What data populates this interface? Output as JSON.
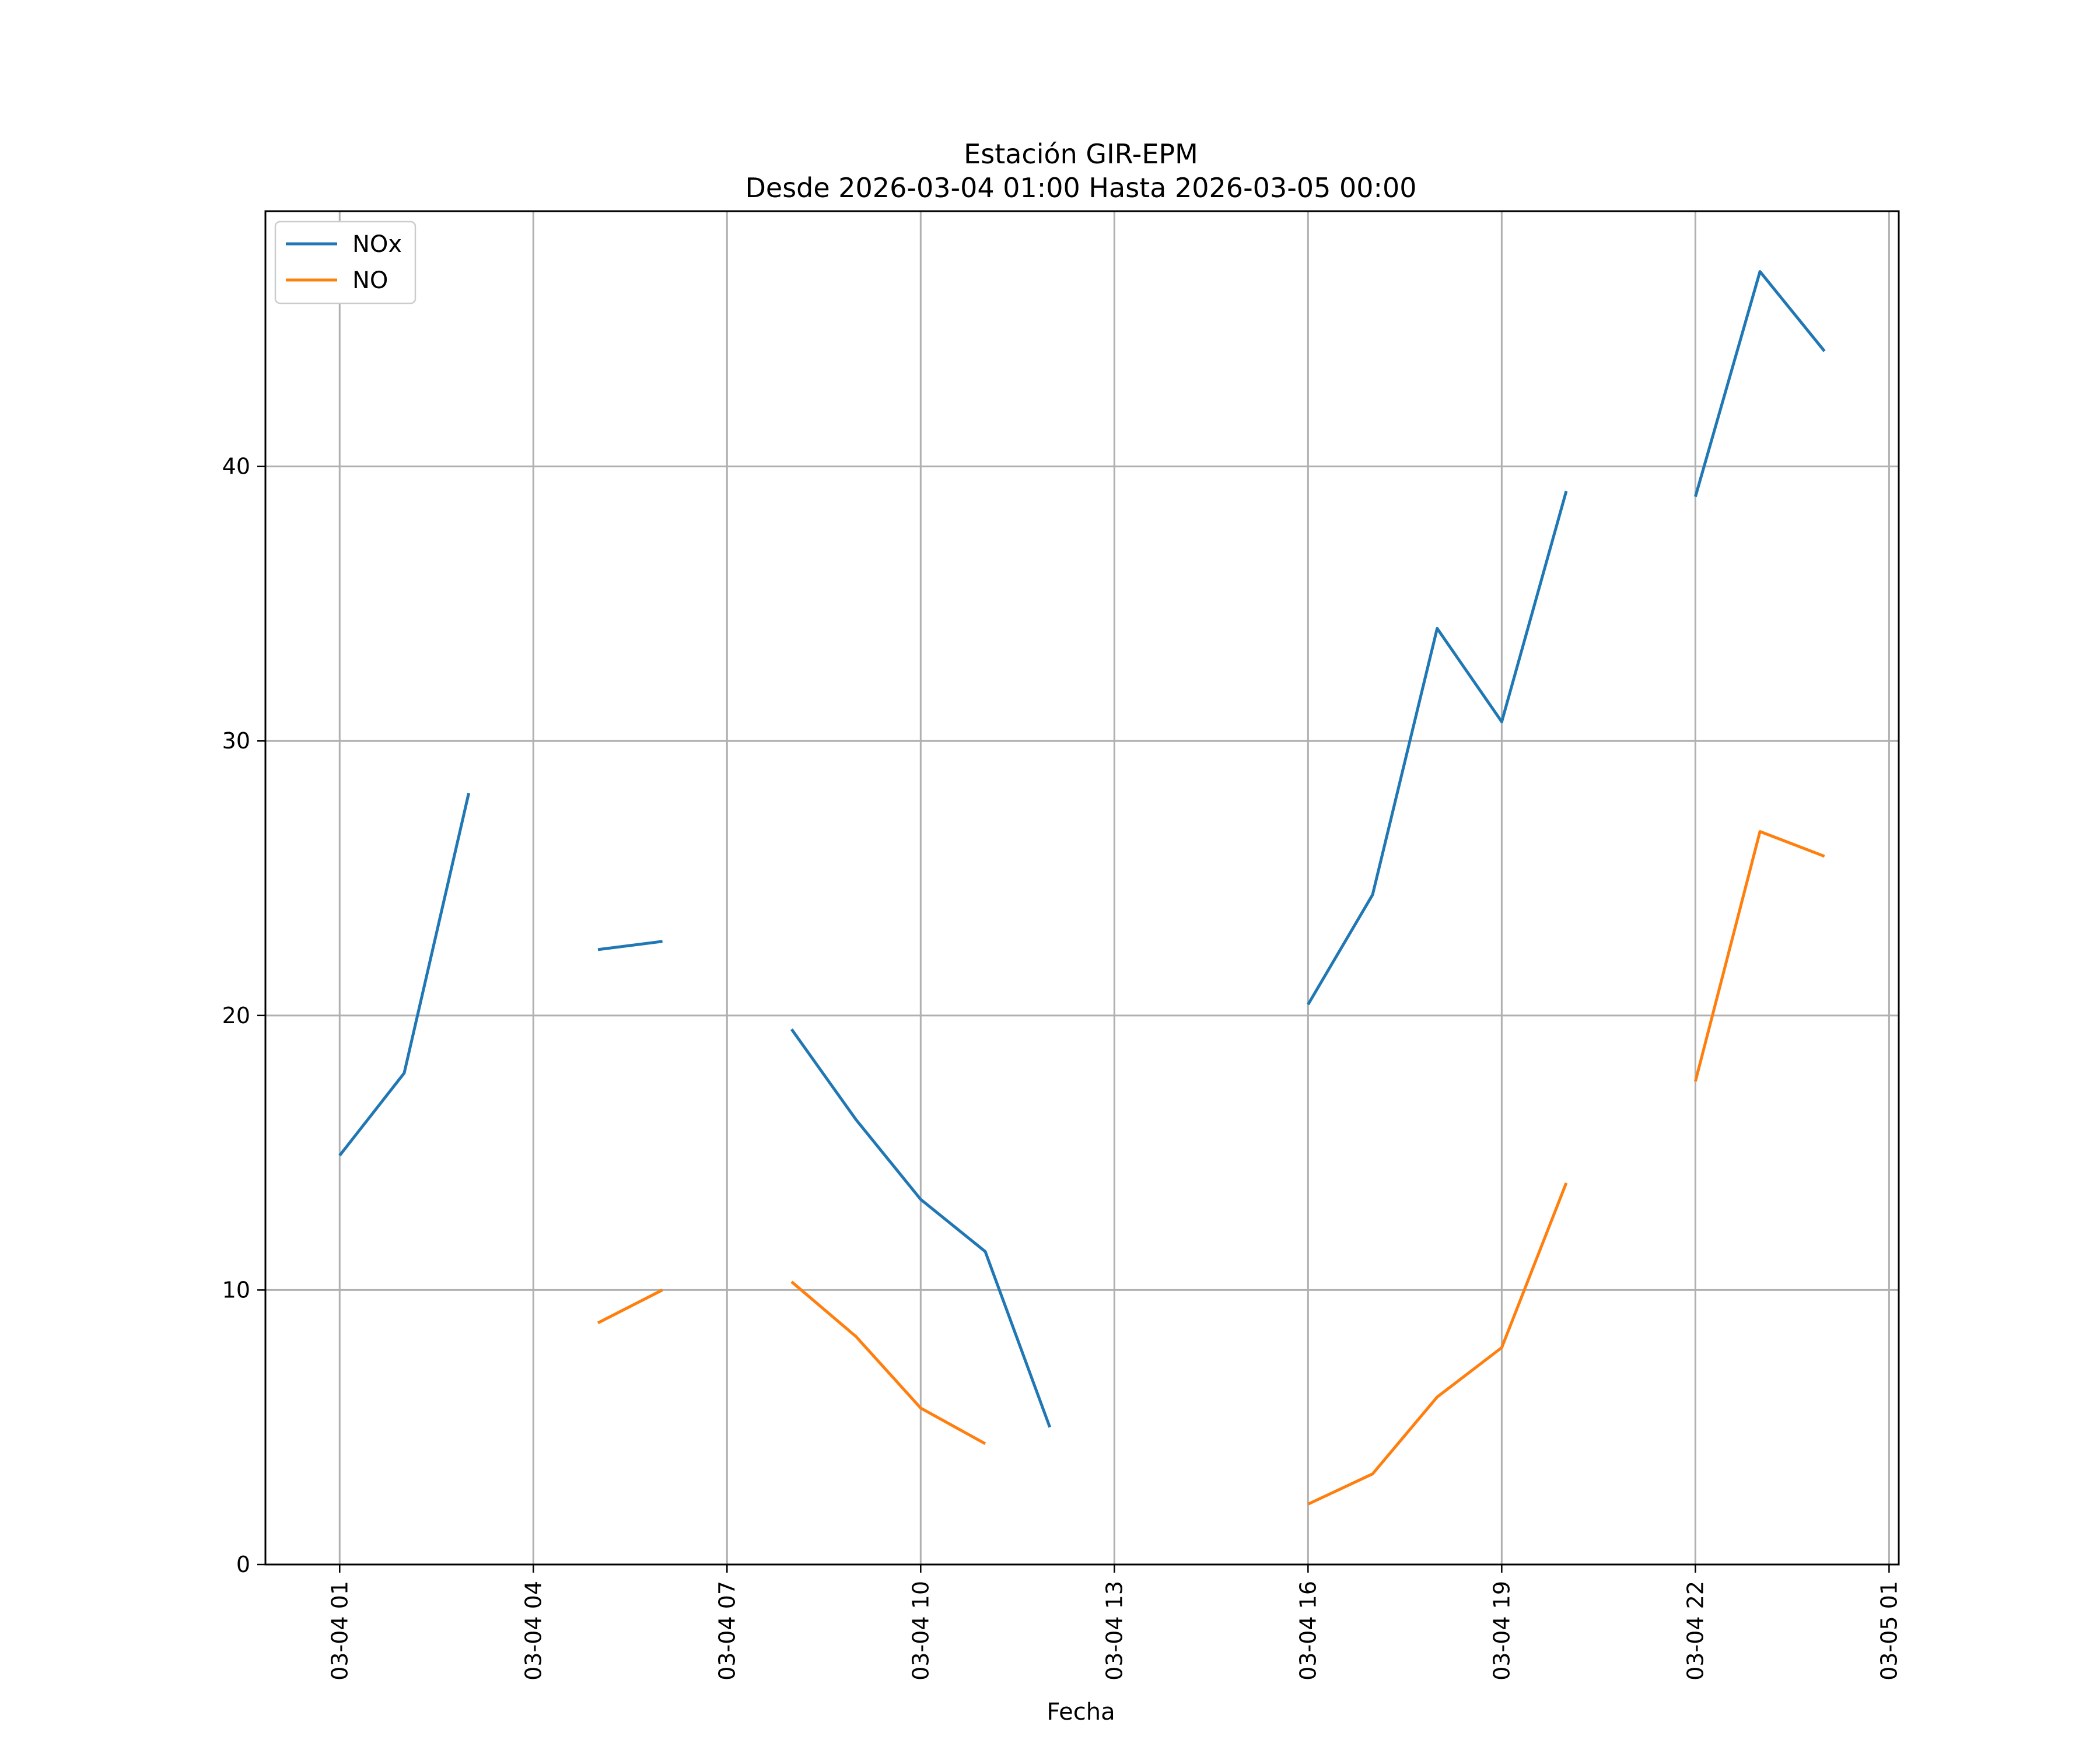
{
  "chart_data": {
    "type": "line",
    "title": "Estación GIR-EPM",
    "subtitle": "Desde 2026-03-04 01:00 Hasta 2026-03-05 00:00",
    "xlabel": "Fecha",
    "ylabel": "",
    "x": [
      "2026-03-04 01:00",
      "2026-03-04 02:00",
      "2026-03-04 03:00",
      "2026-03-04 04:00",
      "2026-03-04 05:00",
      "2026-03-04 06:00",
      "2026-03-04 07:00",
      "2026-03-04 08:00",
      "2026-03-04 09:00",
      "2026-03-04 10:00",
      "2026-03-04 11:00",
      "2026-03-04 12:00",
      "2026-03-04 13:00",
      "2026-03-04 14:00",
      "2026-03-04 15:00",
      "2026-03-04 16:00",
      "2026-03-04 17:00",
      "2026-03-04 18:00",
      "2026-03-04 19:00",
      "2026-03-04 20:00",
      "2026-03-04 21:00",
      "2026-03-04 22:00",
      "2026-03-04 23:00",
      "2026-03-05 00:00"
    ],
    "series": [
      {
        "name": "NOx",
        "color": "#1f77b4",
        "values": [
          14.9,
          17.9,
          28.1,
          null,
          22.4,
          22.7,
          null,
          19.5,
          16.2,
          13.3,
          11.4,
          5.0,
          null,
          null,
          null,
          20.4,
          24.4,
          34.1,
          30.7,
          39.1,
          null,
          38.9,
          47.1,
          44.2
        ]
      },
      {
        "name": "NO",
        "color": "#ff7f0e",
        "values": [
          null,
          null,
          null,
          null,
          8.8,
          10.0,
          null,
          10.3,
          8.3,
          5.7,
          4.4,
          null,
          null,
          null,
          null,
          2.2,
          3.3,
          6.1,
          7.9,
          13.9,
          null,
          17.6,
          26.7,
          25.8
        ]
      }
    ],
    "xticks": [
      "03-04 01",
      "03-04 04",
      "03-04 07",
      "03-04 10",
      "03-04 13",
      "03-04 16",
      "03-04 19",
      "03-04 22",
      "03-05 01"
    ],
    "yticks": [
      0,
      10,
      20,
      30,
      40
    ],
    "ylim": [
      0,
      49.3
    ],
    "xlim": [
      "2026-03-03 23:51",
      "2026-03-05 01:09"
    ],
    "grid": true,
    "legend_position": "top-left"
  }
}
